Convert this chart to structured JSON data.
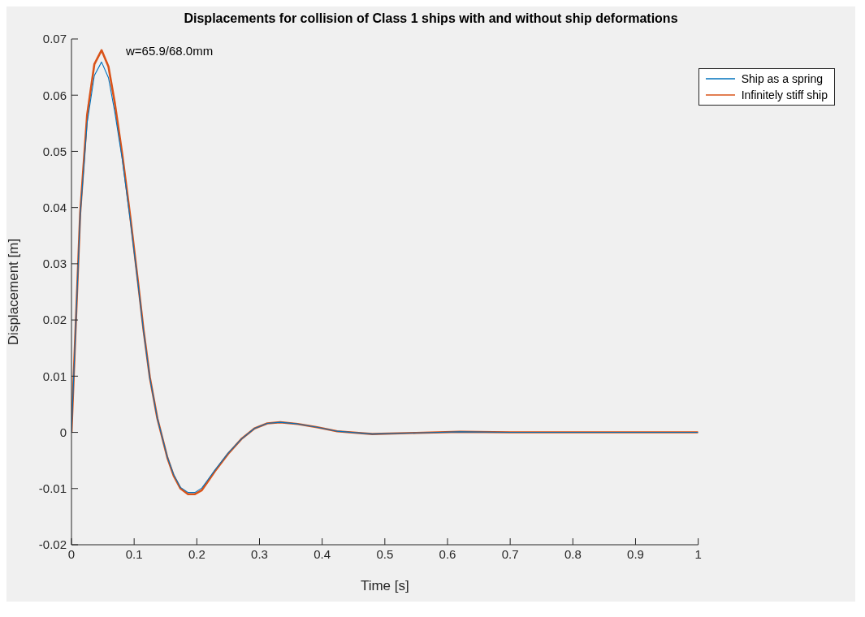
{
  "chart_data": {
    "type": "line",
    "title": "Displacements for collision of Class 1 ships with and without ship deformations",
    "xlabel": "Time [s]",
    "ylabel": "Displacement [m]",
    "annotations": [
      "w=65.9/68.0mm"
    ],
    "xlim": [
      0,
      1
    ],
    "xticks": [
      0,
      0.1,
      0.2,
      0.3,
      0.4,
      0.5,
      0.6,
      0.7,
      0.8,
      0.9,
      1
    ],
    "ylim": [
      -0.02,
      0.07
    ],
    "yticks": [
      -0.02,
      -0.01,
      0,
      0.01,
      0.02,
      0.03,
      0.04,
      0.05,
      0.06,
      0.07
    ],
    "grid": false,
    "legend": "top right",
    "marker": "none",
    "line_style": "solid",
    "series": [
      {
        "name": "Ship as a spring",
        "color": "#0072bd",
        "x": [
          0,
          0.0139,
          0.025,
          0.0365,
          0.048,
          0.059,
          0.069,
          0.081,
          0.094,
          0.106,
          0.115,
          0.125,
          0.137,
          0.153,
          0.163,
          0.174,
          0.186,
          0.197,
          0.208,
          0.229,
          0.25,
          0.271,
          0.292,
          0.3125,
          0.333,
          0.361,
          0.392,
          0.424,
          0.48,
          0.55,
          0.62,
          0.7,
          0.8,
          0.9,
          1
        ],
        "values": [
          0,
          0.0386,
          0.0551,
          0.0635,
          0.0659,
          0.0631,
          0.0571,
          0.0486,
          0.0376,
          0.0266,
          0.018,
          0.0097,
          0.0025,
          -0.0044,
          -0.0075,
          -0.0098,
          -0.0107,
          -0.0107,
          -0.0099,
          -0.0067,
          -0.0037,
          -0.0012,
          0.0007,
          0.0016,
          0.0018,
          0.0015,
          0.0009,
          0.0002,
          -0.0003,
          -0.0001,
          0.0001,
          0,
          0,
          0,
          0
        ]
      },
      {
        "name": "Infinitely stiff ship",
        "color": "#d95319",
        "x": [
          0,
          0.0139,
          0.025,
          0.0365,
          0.048,
          0.059,
          0.069,
          0.081,
          0.094,
          0.106,
          0.115,
          0.125,
          0.137,
          0.153,
          0.163,
          0.174,
          0.186,
          0.197,
          0.208,
          0.229,
          0.25,
          0.271,
          0.292,
          0.3125,
          0.333,
          0.361,
          0.392,
          0.424,
          0.48,
          0.55,
          0.62,
          0.7,
          0.8,
          0.9,
          1
        ],
        "values": [
          0,
          0.039,
          0.0565,
          0.0655,
          0.068,
          0.0651,
          0.0587,
          0.0495,
          0.0382,
          0.0269,
          0.0182,
          0.0098,
          0.0025,
          -0.0045,
          -0.0077,
          -0.01,
          -0.011,
          -0.011,
          -0.0103,
          -0.0069,
          -0.0038,
          -0.0012,
          0.0007,
          0.0016,
          0.0018,
          0.0015,
          0.0009,
          0.0002,
          -0.0003,
          -0.0001,
          0.0001,
          0,
          0,
          0,
          0
        ]
      }
    ]
  }
}
